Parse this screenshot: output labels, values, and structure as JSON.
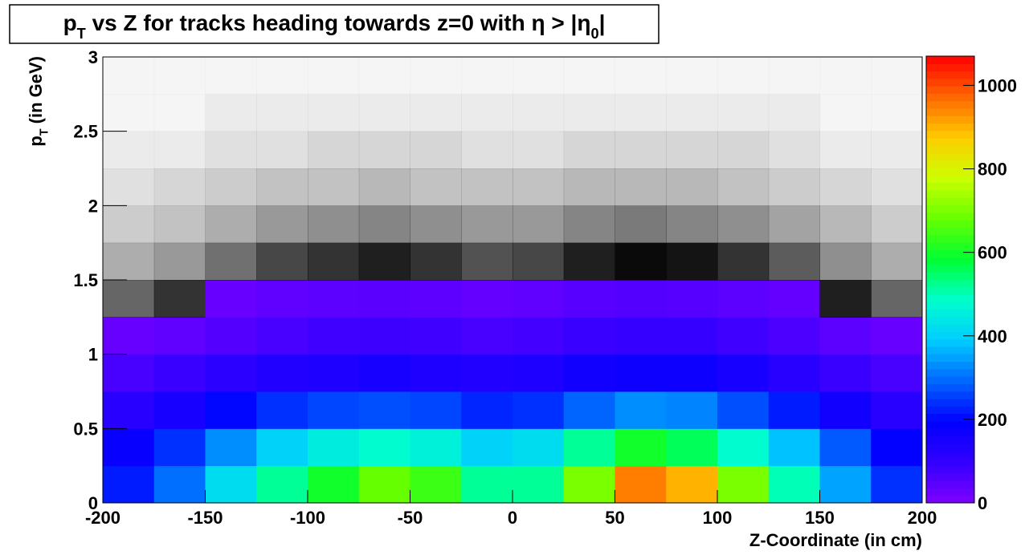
{
  "chart_data": {
    "type": "heatmap",
    "title": [
      "p",
      "T",
      " vs Z for tracks heading towards z=0 with η > |η",
      "0",
      "|"
    ],
    "title_sub": [
      1,
      3
    ],
    "xlabel": "Z-Coordinate (in cm)",
    "ylabel": [
      "p",
      "T",
      " (in GeV)"
    ],
    "ylabel_sub": [
      1
    ],
    "xlim": [
      -200,
      200
    ],
    "ylim": [
      0,
      3
    ],
    "zlim": [
      0,
      1070
    ],
    "xticks": [
      -200,
      -150,
      -100,
      -50,
      0,
      50,
      100,
      150,
      200
    ],
    "yticks": [
      0,
      0.5,
      1,
      1.5,
      2,
      2.5,
      3
    ],
    "zticks": [
      0,
      200,
      400,
      600,
      800,
      1000
    ],
    "xbins": [
      -200,
      -175,
      -150,
      -125,
      -100,
      -75,
      -50,
      -25,
      0,
      25,
      50,
      75,
      100,
      125,
      150,
      175,
      200
    ],
    "ybins": [
      0,
      0.25,
      0.5,
      0.75,
      1,
      1.25,
      1.5,
      1.75,
      2,
      2.25,
      2.5,
      2.75,
      3
    ],
    "palette": [
      "#7f00ff",
      "#3300ff",
      "#0000ff",
      "#0066ff",
      "#00ccff",
      "#00ffcc",
      "#00ff33",
      "#66ff00",
      "#ccff00",
      "#ffcc00",
      "#ff6600",
      "#ff0000"
    ],
    "values": [
      [
        220,
        300,
        420,
        520,
        600,
        680,
        640,
        520,
        520,
        700,
        950,
        900,
        700,
        500,
        350,
        240
      ],
      [
        180,
        240,
        330,
        400,
        450,
        480,
        460,
        400,
        420,
        520,
        600,
        560,
        480,
        380,
        280,
        190
      ],
      [
        120,
        150,
        200,
        240,
        260,
        270,
        260,
        230,
        240,
        290,
        330,
        320,
        270,
        220,
        160,
        120
      ],
      [
        70,
        90,
        110,
        130,
        140,
        150,
        140,
        130,
        140,
        160,
        170,
        170,
        150,
        120,
        90,
        70
      ],
      [
        30,
        40,
        55,
        70,
        80,
        85,
        80,
        70,
        75,
        90,
        95,
        95,
        80,
        65,
        45,
        30
      ],
      [
        15,
        20,
        30,
        40,
        45,
        48,
        42,
        35,
        40,
        50,
        55,
        52,
        45,
        35,
        22,
        15
      ],
      [
        8,
        10,
        14,
        18,
        20,
        22,
        20,
        17,
        18,
        22,
        24,
        23,
        20,
        16,
        11,
        8
      ],
      [
        5,
        6,
        8,
        10,
        11,
        12,
        11,
        10,
        10,
        12,
        13,
        12,
        11,
        9,
        7,
        5
      ],
      [
        3,
        4,
        5,
        6,
        6,
        7,
        6,
        6,
        6,
        7,
        7,
        7,
        6,
        5,
        4,
        3
      ],
      [
        2,
        2,
        3,
        3,
        4,
        4,
        4,
        3,
        3,
        4,
        4,
        4,
        4,
        3,
        2,
        2
      ],
      [
        1,
        1,
        2,
        2,
        2,
        2,
        2,
        2,
        2,
        2,
        2,
        2,
        2,
        2,
        1,
        1
      ],
      [
        1,
        1,
        1,
        1,
        1,
        1,
        1,
        1,
        1,
        1,
        1,
        1,
        1,
        1,
        1,
        1
      ]
    ]
  }
}
